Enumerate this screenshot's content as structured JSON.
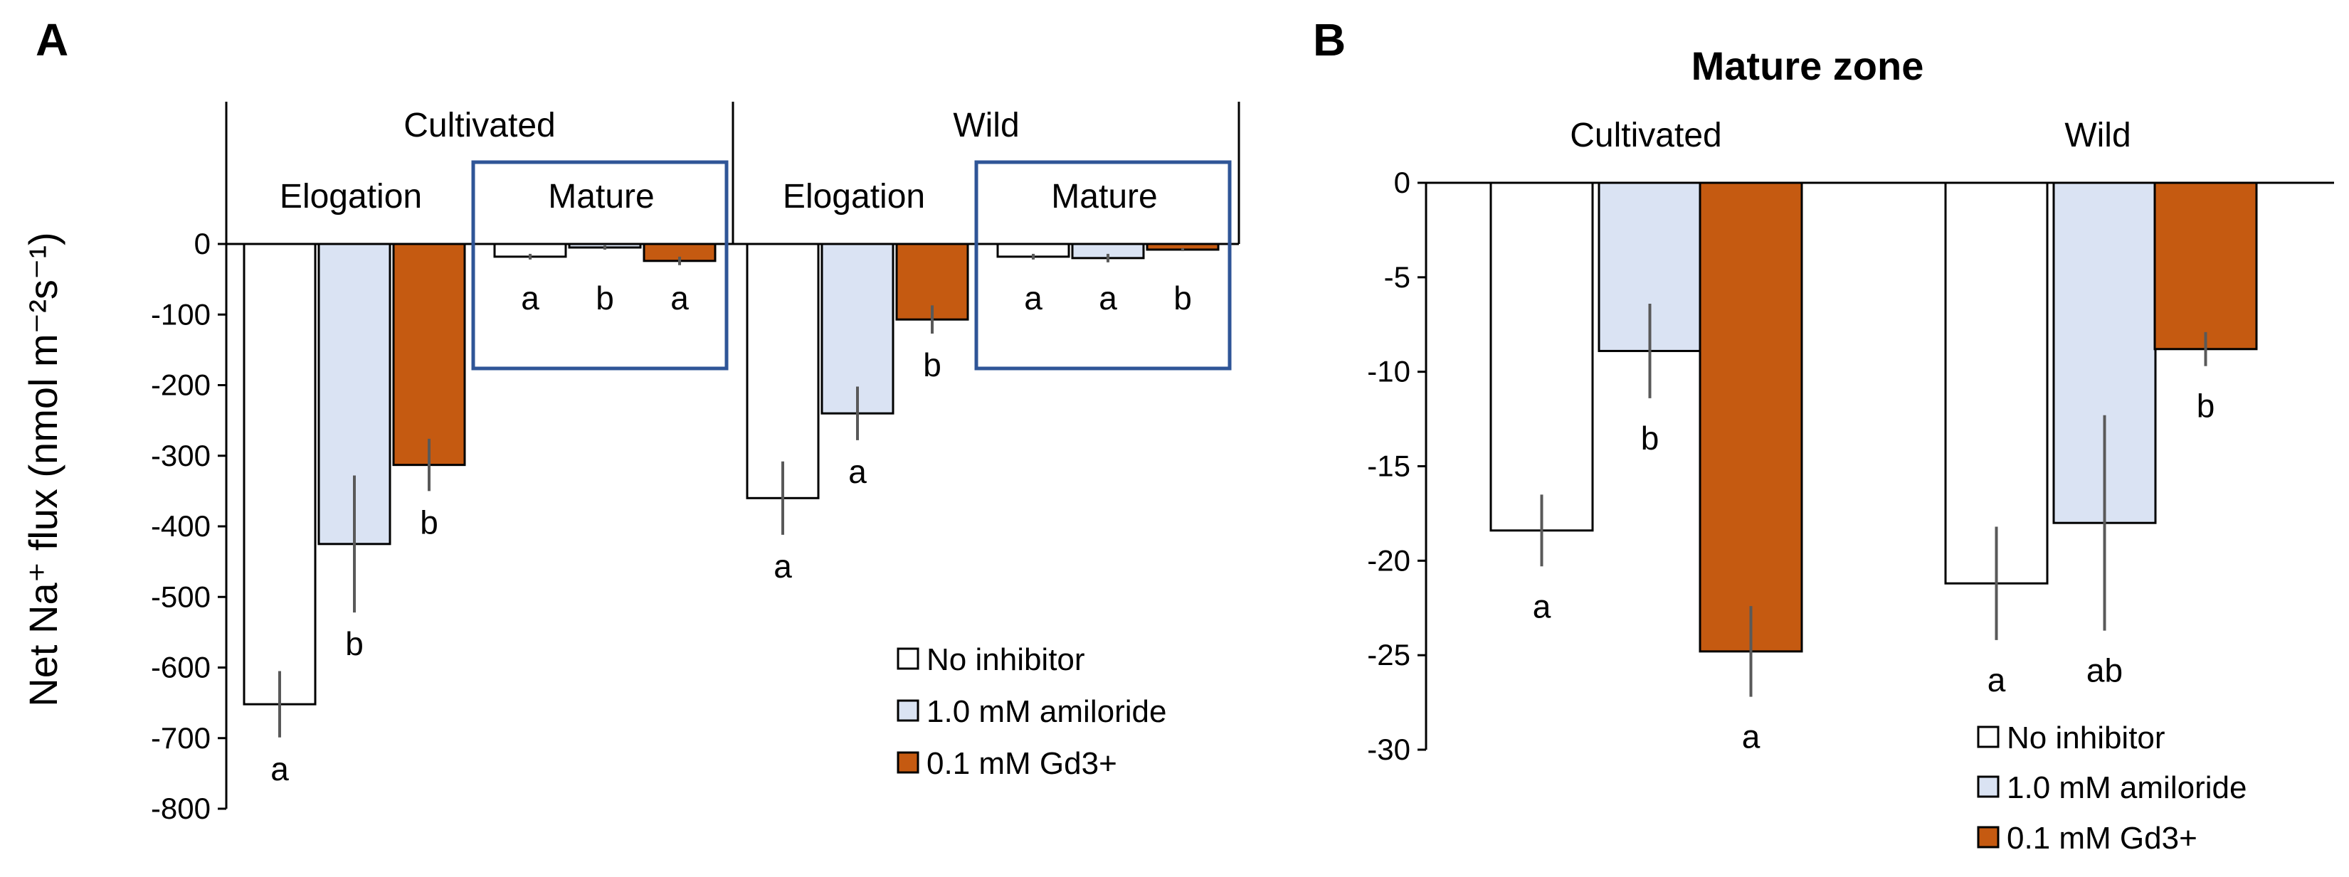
{
  "chart_data": [
    {
      "type": "bar",
      "panel": "A",
      "ylabel": "Net Na⁺ flux (nmol m⁻²s⁻¹)",
      "ylim": [
        -800,
        0
      ],
      "yticks": [
        0,
        -100,
        -200,
        -300,
        -400,
        -500,
        -600,
        -700,
        -800
      ],
      "groups": [
        {
          "name": "Cultivated",
          "zones": [
            {
              "name": "Elogation",
              "boxed": false,
              "values": [
                -652,
                -425,
                -313
              ],
              "errors": [
                47,
                97,
                37
              ],
              "letters": [
                "a",
                "b",
                "b"
              ]
            },
            {
              "name": "Mature",
              "boxed": true,
              "values": [
                -18,
                -5,
                -24
              ],
              "errors": [
                4,
                3,
                6
              ],
              "letters": [
                "a",
                "b",
                "a"
              ]
            }
          ]
        },
        {
          "name": "Wild",
          "zones": [
            {
              "name": "Elogation",
              "boxed": false,
              "values": [
                -360,
                -240,
                -107
              ],
              "errors": [
                52,
                38,
                20
              ],
              "letters": [
                "a",
                "a",
                "b"
              ]
            },
            {
              "name": "Mature",
              "boxed": true,
              "values": [
                -18,
                -20,
                -8
              ],
              "errors": [
                4,
                6,
                2
              ],
              "letters": [
                "a",
                "a",
                "b"
              ]
            }
          ]
        }
      ],
      "series": [
        "No inhibitor",
        "1.0 mM amiloride",
        "0.1 mM Gd3+"
      ],
      "legend_position": "bottom-right"
    },
    {
      "type": "bar",
      "panel": "B",
      "title": "Mature zone",
      "ylim": [
        -30,
        0
      ],
      "yticks": [
        0,
        -5,
        -10,
        -15,
        -20,
        -25,
        -30
      ],
      "groups": [
        {
          "name": "Cultivated",
          "values": [
            -18.4,
            -8.9,
            -24.8
          ],
          "errors": [
            1.9,
            2.5,
            2.4
          ],
          "letters": [
            "a",
            "b",
            "a"
          ]
        },
        {
          "name": "Wild",
          "values": [
            -21.2,
            -18.0,
            -8.8
          ],
          "errors": [
            3.0,
            5.7,
            0.9
          ],
          "letters": [
            "a",
            "ab",
            "b"
          ]
        }
      ],
      "series": [
        "No inhibitor",
        "1.0 mM amiloride",
        "0.1 mM Gd3+"
      ],
      "legend_position": "bottom-right"
    }
  ],
  "colors": {
    "series": [
      "#ffffff",
      "#dae3f3",
      "#c55a11"
    ],
    "box": "#2f5597",
    "axis": "#000000",
    "error": "#595959"
  }
}
